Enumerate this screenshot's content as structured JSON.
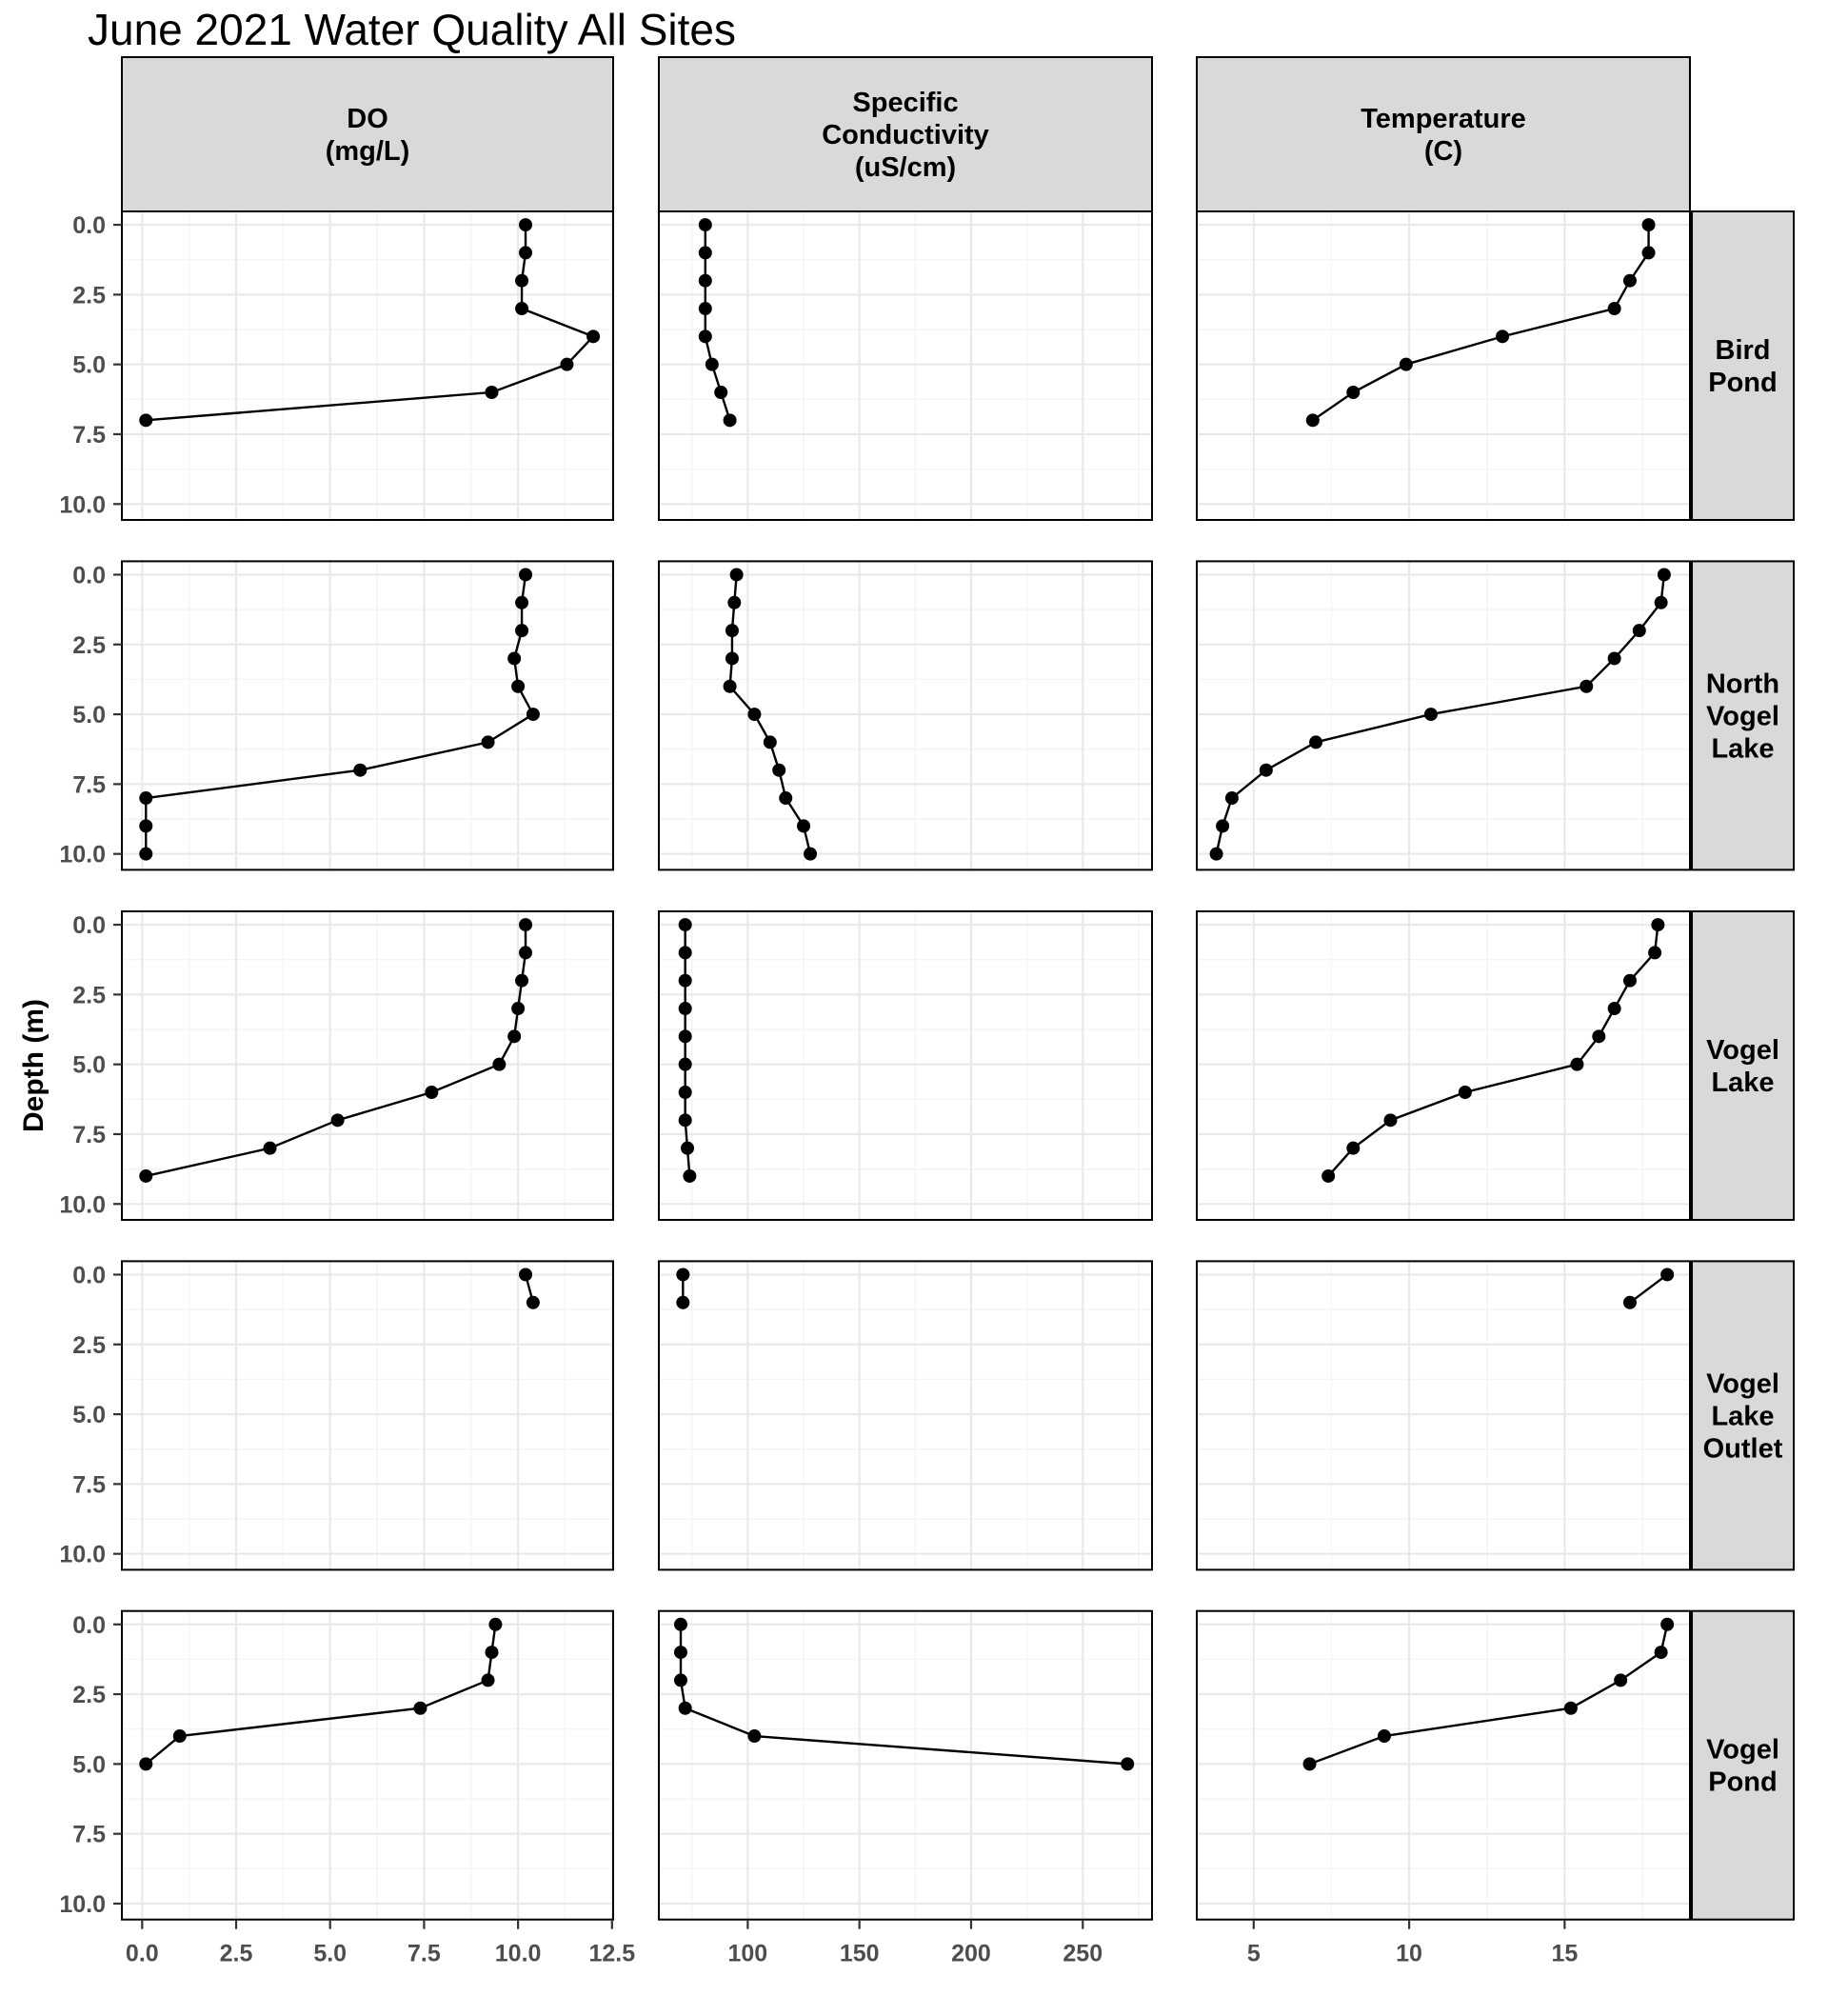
{
  "chart_data": {
    "type": "line",
    "title": "June 2021 Water Quality All Sites",
    "facet": {
      "rows": "site",
      "cols": "measure"
    },
    "grid": "on",
    "legend": "none",
    "y": {
      "label": "Depth (m)",
      "range": [
        -0.48,
        10.57
      ],
      "ticks": [
        0,
        2.5,
        5,
        7.5,
        10
      ],
      "tick_labels": [
        "0.0",
        "2.5",
        "5.0",
        "7.5",
        "10.0"
      ],
      "minors": [
        1.25,
        3.75,
        6.25,
        8.75
      ],
      "inverted": true
    },
    "columns": [
      {
        "id": "do",
        "header_lines": [
          "DO",
          "(mg/L)"
        ],
        "range": [
          -0.54,
          12.53
        ],
        "ticks": [
          0,
          2.5,
          5,
          7.5,
          10,
          12.5
        ],
        "tick_labels": [
          "0.0",
          "2.5",
          "5.0",
          "7.5",
          "10.0",
          "12.5"
        ],
        "minors": [
          1.25,
          3.75,
          6.25,
          8.75,
          11.25
        ]
      },
      {
        "id": "cond",
        "header_lines": [
          "Specific",
          "Conductivity",
          "(uS/cm)"
        ],
        "range": [
          60.2,
          281
        ],
        "ticks": [
          100,
          150,
          200,
          250
        ],
        "tick_labels": [
          "100",
          "150",
          "200",
          "250"
        ],
        "minors": [
          75,
          125,
          175,
          225,
          275
        ]
      },
      {
        "id": "temp",
        "header_lines": [
          "Temperature",
          "(C)"
        ],
        "range": [
          3.17,
          19.03
        ],
        "ticks": [
          5,
          10,
          15
        ],
        "tick_labels": [
          "5",
          "10",
          "15"
        ],
        "minors": [
          7.5,
          12.5,
          17.5
        ]
      }
    ],
    "sites": [
      {
        "name": "Bird Pond",
        "label_lines": [
          "Bird",
          "Pond"
        ],
        "depths": [
          0,
          1,
          2,
          3,
          4,
          5,
          6,
          7
        ],
        "values": {
          "do": [
            10.2,
            10.2,
            10.1,
            10.1,
            12.0,
            11.3,
            9.3,
            0.1
          ],
          "cond": [
            81,
            81,
            81,
            81,
            81,
            84,
            88,
            92
          ],
          "temp": [
            17.7,
            17.7,
            17.1,
            16.6,
            13.0,
            9.9,
            8.2,
            6.9
          ]
        }
      },
      {
        "name": "North Vogel Lake",
        "label_lines": [
          "North",
          "Vogel",
          "Lake"
        ],
        "depths": [
          0,
          1,
          2,
          3,
          4,
          5,
          6,
          7,
          8,
          9,
          10
        ],
        "values": {
          "do": [
            10.2,
            10.1,
            10.1,
            9.9,
            10.0,
            10.4,
            9.2,
            5.8,
            0.1,
            0.1,
            0.1
          ],
          "cond": [
            95,
            94,
            93,
            93,
            92,
            103,
            110,
            114,
            117,
            125,
            128
          ],
          "temp": [
            18.2,
            18.1,
            17.4,
            16.6,
            15.7,
            10.7,
            7.0,
            5.4,
            4.3,
            4.0,
            3.8
          ]
        }
      },
      {
        "name": "Vogel Lake",
        "label_lines": [
          "Vogel",
          "Lake"
        ],
        "depths": [
          0,
          1,
          2,
          3,
          4,
          5,
          6,
          7,
          8,
          9
        ],
        "values": {
          "do": [
            10.2,
            10.2,
            10.1,
            10.0,
            9.9,
            9.5,
            7.7,
            5.2,
            3.4,
            0.1
          ],
          "cond": [
            72,
            72,
            72,
            72,
            72,
            72,
            72,
            72,
            73,
            74
          ],
          "temp": [
            18.0,
            17.9,
            17.1,
            16.6,
            16.1,
            15.4,
            11.8,
            9.4,
            8.2,
            7.4
          ]
        }
      },
      {
        "name": "Vogel Lake Outlet",
        "label_lines": [
          "Vogel",
          "Lake",
          "Outlet"
        ],
        "depths": [
          0,
          1
        ],
        "values": {
          "do": [
            10.2,
            10.4
          ],
          "cond": [
            71,
            71
          ],
          "temp": [
            18.3,
            17.1
          ]
        }
      },
      {
        "name": "Vogel Pond",
        "label_lines": [
          "Vogel",
          "Pond"
        ],
        "depths": [
          0,
          1,
          2,
          3,
          4,
          5
        ],
        "values": {
          "do": [
            9.4,
            9.3,
            9.2,
            7.4,
            1.0,
            0.1
          ],
          "cond": [
            70,
            70,
            70,
            72,
            103,
            270
          ],
          "temp": [
            18.3,
            18.1,
            16.8,
            15.2,
            9.2,
            6.8
          ]
        }
      }
    ],
    "style": {
      "strip_fill": "#d9d9d9",
      "panel_fill": "#ffffff",
      "panel_border": "#000000",
      "grid_major": "#e8e8e8",
      "grid_minor": "#f4f4f4",
      "line_color": "#000000",
      "point_color": "#000000",
      "axis_text_color": "#4d4d4d",
      "tick_mark_color": "#333333"
    }
  }
}
